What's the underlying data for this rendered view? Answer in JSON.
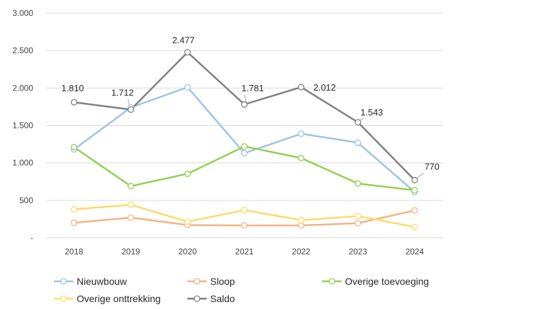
{
  "chart_data": {
    "type": "line",
    "title": "",
    "xlabel": "",
    "ylabel": "",
    "x": [
      "2018",
      "2019",
      "2020",
      "2021",
      "2022",
      "2023",
      "2024"
    ],
    "ylim": [
      0,
      3000
    ],
    "yticks": [
      0,
      500,
      1000,
      1500,
      2000,
      2500,
      3000
    ],
    "ytick_labels": [
      "-",
      "500",
      "1.000",
      "1.500",
      "2.000",
      "2.500",
      "3.000"
    ],
    "grid": true,
    "legend": "bottom",
    "series": [
      {
        "name": "Nieuwbouw",
        "color": "#9DC3E6",
        "values": [
          1180,
          1740,
          2010,
          1130,
          1390,
          1270,
          610
        ]
      },
      {
        "name": "Sloop",
        "color": "#F4B183",
        "values": [
          200,
          270,
          170,
          165,
          165,
          195,
          365
        ]
      },
      {
        "name": "Overige toevoeging",
        "color": "#92D050",
        "values": [
          1210,
          690,
          855,
          1220,
          1065,
          725,
          635
        ]
      },
      {
        "name": "Overige onttrekking",
        "color": "#FFD966",
        "values": [
          380,
          440,
          215,
          370,
          235,
          290,
          145
        ]
      },
      {
        "name": "Saldo",
        "color": "#7F7F7F",
        "values": [
          1810,
          1712,
          2477,
          1781,
          2012,
          1543,
          770
        ]
      }
    ],
    "data_labels": {
      "series": "Saldo",
      "labels": [
        "1.810",
        "1.712",
        "2.477",
        "1.781",
        "2.012",
        "1.543",
        "770"
      ]
    }
  }
}
